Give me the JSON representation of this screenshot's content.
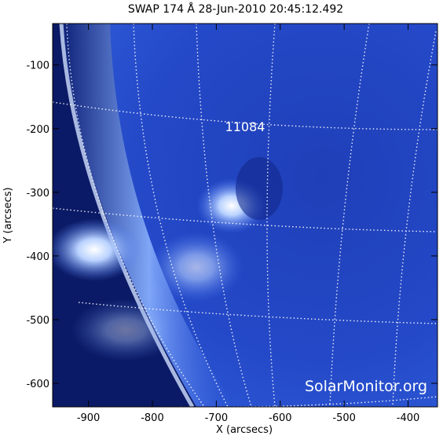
{
  "chart_data": {
    "type": "image",
    "title": "SWAP 174 Å 28-Jun-2010 20:45:12.492",
    "x_label": "X (arcsecs)",
    "y_label": "Y (arcsecs)",
    "xlim": [
      -956,
      -354
    ],
    "ylim": [
      -637,
      -35
    ],
    "xticks": [
      -900,
      -800,
      -700,
      -600,
      -500,
      -400
    ],
    "yticks": [
      -100,
      -200,
      -300,
      -400,
      -500,
      -600
    ],
    "annotation": "11084",
    "watermark": "SolarMonitor.org"
  }
}
